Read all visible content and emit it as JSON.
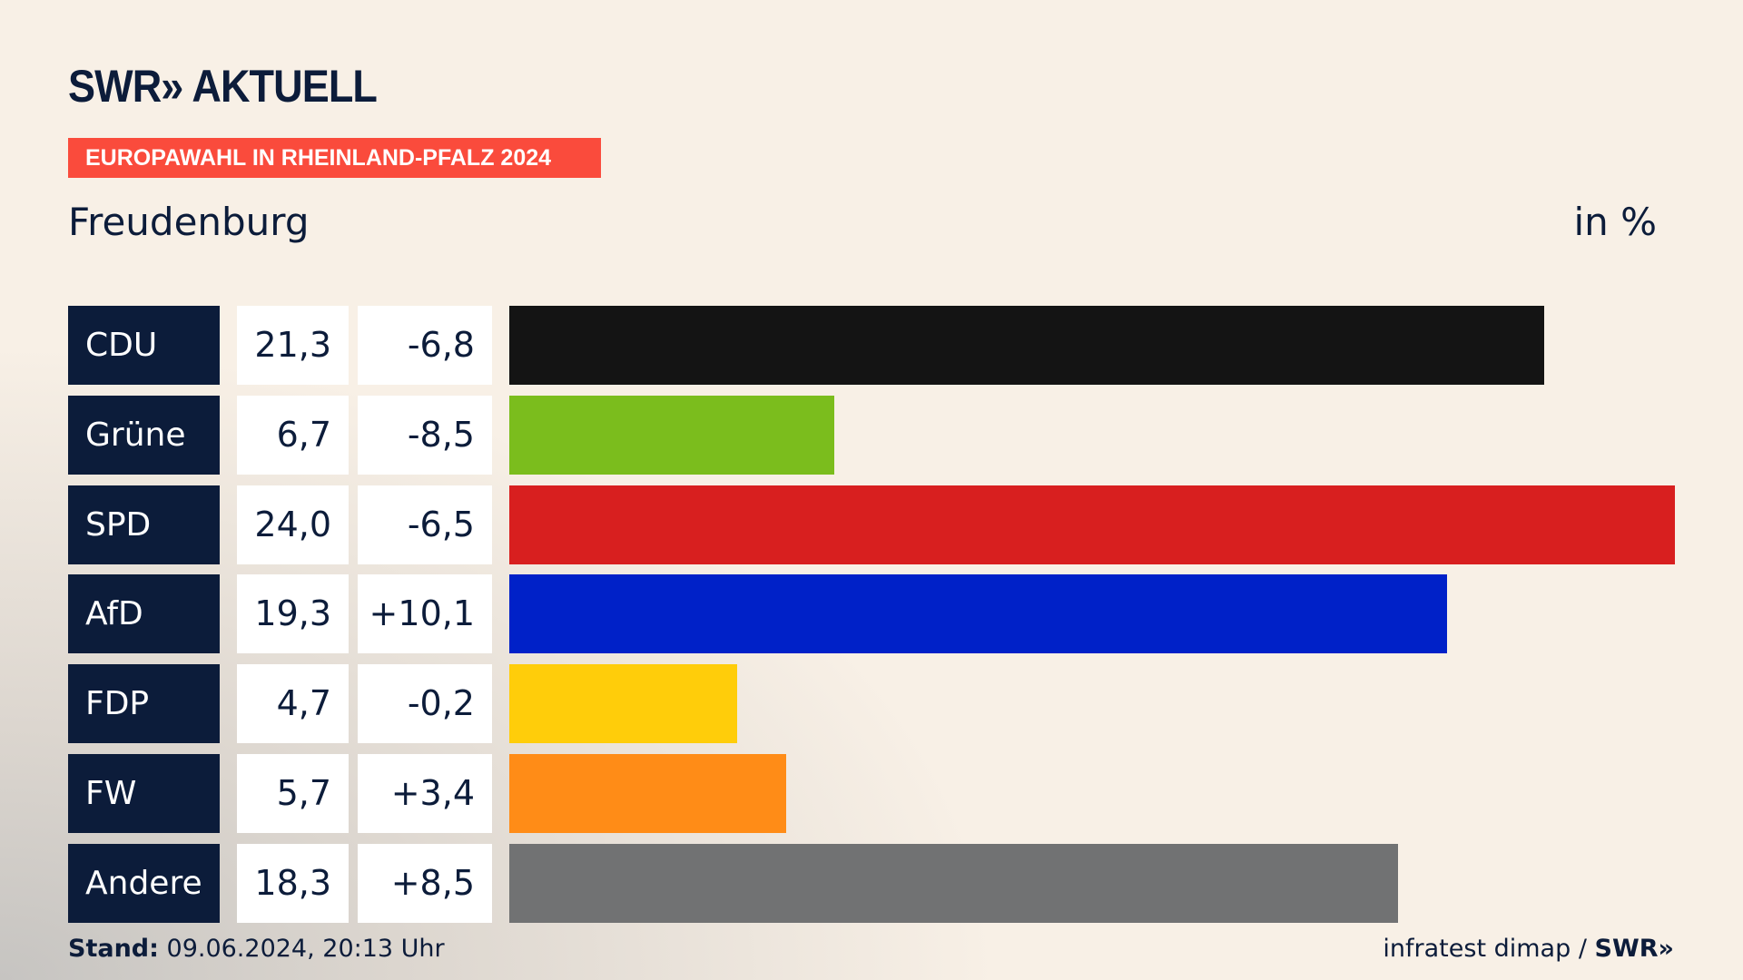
{
  "header": {
    "logo": "SWR» AKTUELL",
    "badge": "EUROPAWAHL IN RHEINLAND-PFALZ 2024",
    "place": "Freudenburg",
    "unit": "in %"
  },
  "footer": {
    "stand_label": "Stand:",
    "stand_value": "09.06.2024, 20:13 Uhr",
    "source": "infratest dimap /",
    "source_logo": "SWR»"
  },
  "chart_data": {
    "type": "bar",
    "orientation": "horizontal",
    "title": "Europawahl in Rheinland-Pfalz 2024 – Freudenburg",
    "unit": "%",
    "categories": [
      "CDU",
      "Grüne",
      "SPD",
      "AfD",
      "FDP",
      "FW",
      "Andere"
    ],
    "values": [
      21.3,
      6.7,
      24.0,
      19.3,
      4.7,
      5.7,
      18.3
    ],
    "value_labels": [
      "21,3",
      "6,7",
      "24,0",
      "19,3",
      "4,7",
      "5,7",
      "18,3"
    ],
    "diff_labels": [
      "-6,8",
      "-8,5",
      "-6,5",
      "+10,1",
      "-0,2",
      "+3,4",
      "+8,5"
    ],
    "diffs": [
      -6.8,
      -8.5,
      -6.5,
      10.1,
      -0.2,
      3.4,
      8.5
    ],
    "colors": [
      "#141414",
      "#7bbd1d",
      "#d81f1f",
      "#0021c8",
      "#ffcd0a",
      "#ff8c17",
      "#717273"
    ],
    "xlim": [
      0,
      24.0
    ]
  }
}
